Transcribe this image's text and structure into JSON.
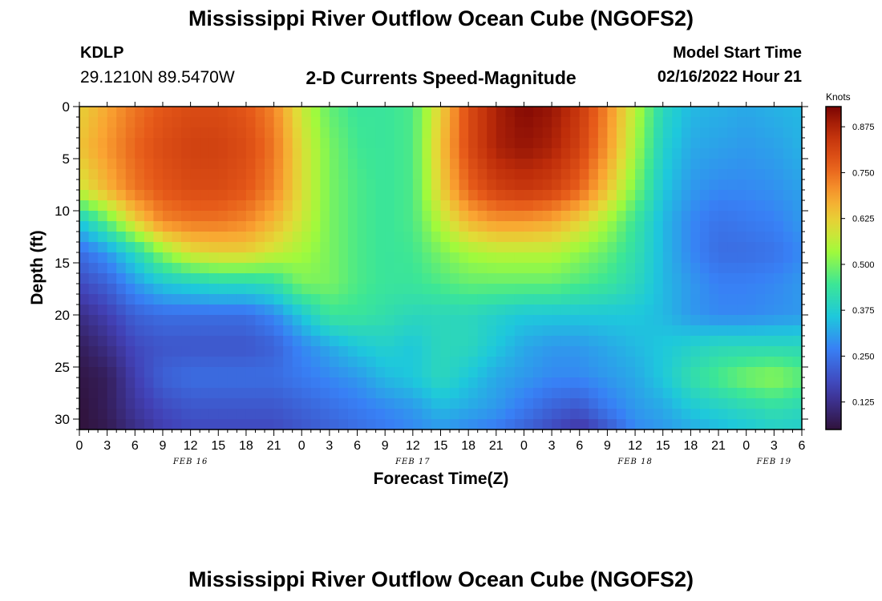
{
  "header": {
    "title": "Mississippi River Outflow Ocean Cube (NGOFS2)",
    "station_id": "KDLP",
    "station_coords": "29.1210N  89.5470W",
    "subtitle": "2-D Currents Speed-Magnitude",
    "model_start_label": "Model Start Time",
    "model_start_value": "02/16/2022 Hour 21"
  },
  "footer": {
    "title": "Mississippi River Outflow Ocean Cube (NGOFS2)"
  },
  "chart_data": {
    "type": "heatmap",
    "title": "2-D Currents Speed-Magnitude",
    "xlabel": "Forecast Time(Z)",
    "ylabel": "Depth (ft)",
    "x_unit_hours": true,
    "xlim": [
      0,
      78
    ],
    "ylim": [
      0,
      31
    ],
    "y_inverted": true,
    "x_tick_labels": [
      "0",
      "3",
      "6",
      "9",
      "12",
      "15",
      "18",
      "21",
      "0",
      "3",
      "6",
      "9",
      "12",
      "15",
      "18",
      "21",
      "0",
      "3",
      "6",
      "9",
      "12",
      "15",
      "18",
      "21",
      "0",
      "3",
      "6"
    ],
    "y_ticks": [
      0,
      5,
      10,
      15,
      20,
      25,
      30
    ],
    "date_labels": [
      {
        "label": "FEB 16",
        "hour": 12
      },
      {
        "label": "FEB 17",
        "hour": 36
      },
      {
        "label": "FEB 18",
        "hour": 60
      },
      {
        "label": "FEB 19",
        "hour": 75
      }
    ],
    "colorbar": {
      "unit": "Knots",
      "range": [
        0.05,
        0.93
      ],
      "ticks": [
        0.125,
        0.25,
        0.375,
        0.5,
        0.625,
        0.75,
        0.875
      ],
      "tick_labels": [
        "0.125",
        "0.250",
        "0.375",
        "0.500",
        "0.625",
        "0.750",
        "0.875"
      ]
    },
    "grid_hours": [
      0,
      3,
      6,
      9,
      12,
      15,
      18,
      21,
      24,
      27,
      30,
      33,
      36,
      39,
      42,
      45,
      48,
      51,
      54,
      57,
      60,
      63,
      66,
      69,
      72,
      75,
      78
    ],
    "grid_depths": [
      0,
      4,
      8,
      11,
      14,
      17,
      20,
      23,
      26,
      29,
      31
    ],
    "values": [
      [
        0.62,
        0.68,
        0.74,
        0.78,
        0.8,
        0.8,
        0.78,
        0.72,
        0.58,
        0.48,
        0.44,
        0.44,
        0.46,
        0.62,
        0.8,
        0.88,
        0.92,
        0.9,
        0.84,
        0.72,
        0.56,
        0.4,
        0.34,
        0.33,
        0.32,
        0.33,
        0.34
      ],
      [
        0.64,
        0.7,
        0.76,
        0.8,
        0.82,
        0.82,
        0.8,
        0.74,
        0.6,
        0.5,
        0.45,
        0.44,
        0.46,
        0.64,
        0.8,
        0.88,
        0.9,
        0.88,
        0.82,
        0.7,
        0.54,
        0.38,
        0.32,
        0.31,
        0.3,
        0.31,
        0.33
      ],
      [
        0.58,
        0.66,
        0.74,
        0.78,
        0.8,
        0.8,
        0.78,
        0.72,
        0.6,
        0.5,
        0.46,
        0.44,
        0.46,
        0.62,
        0.76,
        0.82,
        0.84,
        0.82,
        0.76,
        0.64,
        0.5,
        0.36,
        0.3,
        0.28,
        0.28,
        0.29,
        0.31
      ],
      [
        0.36,
        0.48,
        0.62,
        0.72,
        0.74,
        0.74,
        0.72,
        0.66,
        0.58,
        0.5,
        0.46,
        0.44,
        0.46,
        0.56,
        0.66,
        0.7,
        0.7,
        0.68,
        0.62,
        0.54,
        0.44,
        0.34,
        0.28,
        0.25,
        0.26,
        0.27,
        0.3
      ],
      [
        0.24,
        0.3,
        0.4,
        0.52,
        0.6,
        0.62,
        0.62,
        0.58,
        0.54,
        0.5,
        0.46,
        0.44,
        0.45,
        0.5,
        0.54,
        0.56,
        0.56,
        0.56,
        0.52,
        0.48,
        0.42,
        0.34,
        0.28,
        0.24,
        0.24,
        0.25,
        0.28
      ],
      [
        0.18,
        0.22,
        0.3,
        0.36,
        0.38,
        0.4,
        0.4,
        0.42,
        0.5,
        0.5,
        0.46,
        0.44,
        0.44,
        0.46,
        0.48,
        0.48,
        0.48,
        0.48,
        0.46,
        0.44,
        0.4,
        0.34,
        0.3,
        0.27,
        0.27,
        0.28,
        0.3
      ],
      [
        0.12,
        0.16,
        0.22,
        0.24,
        0.24,
        0.24,
        0.24,
        0.28,
        0.36,
        0.44,
        0.44,
        0.42,
        0.4,
        0.4,
        0.4,
        0.38,
        0.36,
        0.36,
        0.36,
        0.36,
        0.36,
        0.34,
        0.3,
        0.28,
        0.28,
        0.29,
        0.3
      ],
      [
        0.08,
        0.12,
        0.18,
        0.2,
        0.2,
        0.2,
        0.2,
        0.22,
        0.28,
        0.32,
        0.36,
        0.38,
        0.36,
        0.4,
        0.4,
        0.36,
        0.32,
        0.3,
        0.3,
        0.32,
        0.34,
        0.36,
        0.38,
        0.4,
        0.4,
        0.4,
        0.4
      ],
      [
        0.06,
        0.08,
        0.16,
        0.22,
        0.24,
        0.24,
        0.24,
        0.24,
        0.26,
        0.28,
        0.3,
        0.34,
        0.36,
        0.4,
        0.36,
        0.32,
        0.3,
        0.28,
        0.28,
        0.3,
        0.32,
        0.36,
        0.42,
        0.46,
        0.5,
        0.52,
        0.48
      ],
      [
        0.05,
        0.08,
        0.14,
        0.18,
        0.2,
        0.2,
        0.2,
        0.2,
        0.22,
        0.24,
        0.26,
        0.28,
        0.3,
        0.34,
        0.32,
        0.3,
        0.26,
        0.22,
        0.2,
        0.26,
        0.3,
        0.32,
        0.36,
        0.38,
        0.4,
        0.42,
        0.4
      ],
      [
        0.05,
        0.07,
        0.12,
        0.16,
        0.18,
        0.18,
        0.18,
        0.18,
        0.2,
        0.22,
        0.24,
        0.26,
        0.28,
        0.3,
        0.28,
        0.26,
        0.22,
        0.18,
        0.14,
        0.2,
        0.28,
        0.3,
        0.32,
        0.34,
        0.36,
        0.38,
        0.38
      ]
    ]
  }
}
